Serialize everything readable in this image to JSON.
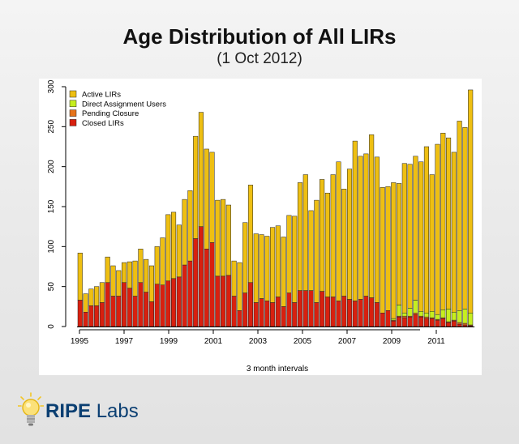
{
  "title": "Age Distribution of All LIRs",
  "subtitle": "(1 Oct 2012)",
  "logo": {
    "brand_bold": "RIPE",
    "brand_rest": "Labs"
  },
  "colors": {
    "active": "#eebf12",
    "direct_assignment": "#c6ee1f",
    "pending": "#e6731a",
    "closed": "#d8200f",
    "logo_blue": "#0b3f72",
    "bulb": "#f3c623"
  },
  "chart_data": {
    "type": "bar",
    "stacked": true,
    "xlabel": "3 month intervals",
    "ylabel": "",
    "ylim": [
      0,
      300
    ],
    "yticks": [
      0,
      50,
      100,
      150,
      200,
      250,
      300
    ],
    "xticks": [
      "1995",
      "1997",
      "1999",
      "2001",
      "2003",
      "2005",
      "2007",
      "2009",
      "2011"
    ],
    "legend_position": "top-left",
    "series": [
      {
        "name": "Closed LIRs",
        "color_key": "closed",
        "values": [
          33,
          18,
          26,
          26,
          30,
          55,
          38,
          38,
          55,
          48,
          38,
          55,
          43,
          31,
          53,
          52,
          57,
          60,
          62,
          77,
          82,
          110,
          125,
          97,
          105,
          63,
          63,
          64,
          38,
          20,
          42,
          55,
          30,
          35,
          32,
          30,
          37,
          25,
          42,
          30,
          45,
          45,
          45,
          30,
          44,
          37,
          37,
          32,
          38,
          34,
          32,
          34,
          38,
          36,
          30,
          17,
          20,
          7,
          12,
          11,
          12,
          15,
          12,
          10,
          10,
          8,
          10,
          5,
          7,
          3,
          2,
          1
        ]
      },
      {
        "name": "Pending Closure",
        "color_key": "pending",
        "values": [
          0,
          0,
          0,
          0,
          0,
          0,
          0,
          0,
          0,
          0,
          0,
          0,
          0,
          0,
          0,
          0,
          0,
          0,
          0,
          0,
          0,
          0,
          0,
          0,
          0,
          0,
          0,
          0,
          0,
          0,
          0,
          0,
          0,
          0,
          0,
          0,
          0,
          0,
          0,
          0,
          0,
          0,
          0,
          0,
          0,
          0,
          0,
          0,
          0,
          0,
          0,
          0,
          0,
          0,
          0,
          0,
          0,
          1,
          1,
          2,
          1,
          2,
          1,
          2,
          1,
          1,
          1,
          1,
          1,
          2,
          2,
          1
        ]
      },
      {
        "name": "Direct Assignment Users",
        "color_key": "direct_assignment",
        "values": [
          0,
          0,
          0,
          0,
          0,
          0,
          0,
          0,
          0,
          0,
          0,
          0,
          0,
          0,
          0,
          0,
          0,
          0,
          0,
          0,
          0,
          0,
          0,
          0,
          0,
          0,
          0,
          0,
          0,
          0,
          0,
          0,
          0,
          0,
          0,
          0,
          0,
          0,
          0,
          0,
          0,
          0,
          0,
          0,
          0,
          0,
          0,
          0,
          0,
          0,
          0,
          0,
          0,
          0,
          0,
          0,
          0,
          2,
          14,
          4,
          10,
          16,
          6,
          5,
          8,
          6,
          10,
          16,
          10,
          15,
          18,
          15
        ]
      },
      {
        "name": "Active LIRs",
        "color_key": "active",
        "values": [
          59,
          23,
          21,
          24,
          25,
          32,
          38,
          32,
          25,
          33,
          44,
          42,
          41,
          45,
          47,
          59,
          83,
          83,
          65,
          82,
          88,
          128,
          143,
          125,
          113,
          95,
          96,
          88,
          44,
          60,
          88,
          122,
          86,
          80,
          81,
          94,
          89,
          87,
          97,
          108,
          135,
          145,
          100,
          128,
          140,
          130,
          153,
          174,
          134,
          163,
          200,
          179,
          178,
          204,
          182,
          157,
          155,
          170,
          152,
          187,
          180,
          180,
          187,
          208,
          171,
          213,
          221,
          214,
          200,
          237,
          227,
          279
        ]
      }
    ],
    "legend_order": [
      "Active LIRs",
      "Direct Assignment Users",
      "Pending Closure",
      "Closed LIRs"
    ]
  }
}
